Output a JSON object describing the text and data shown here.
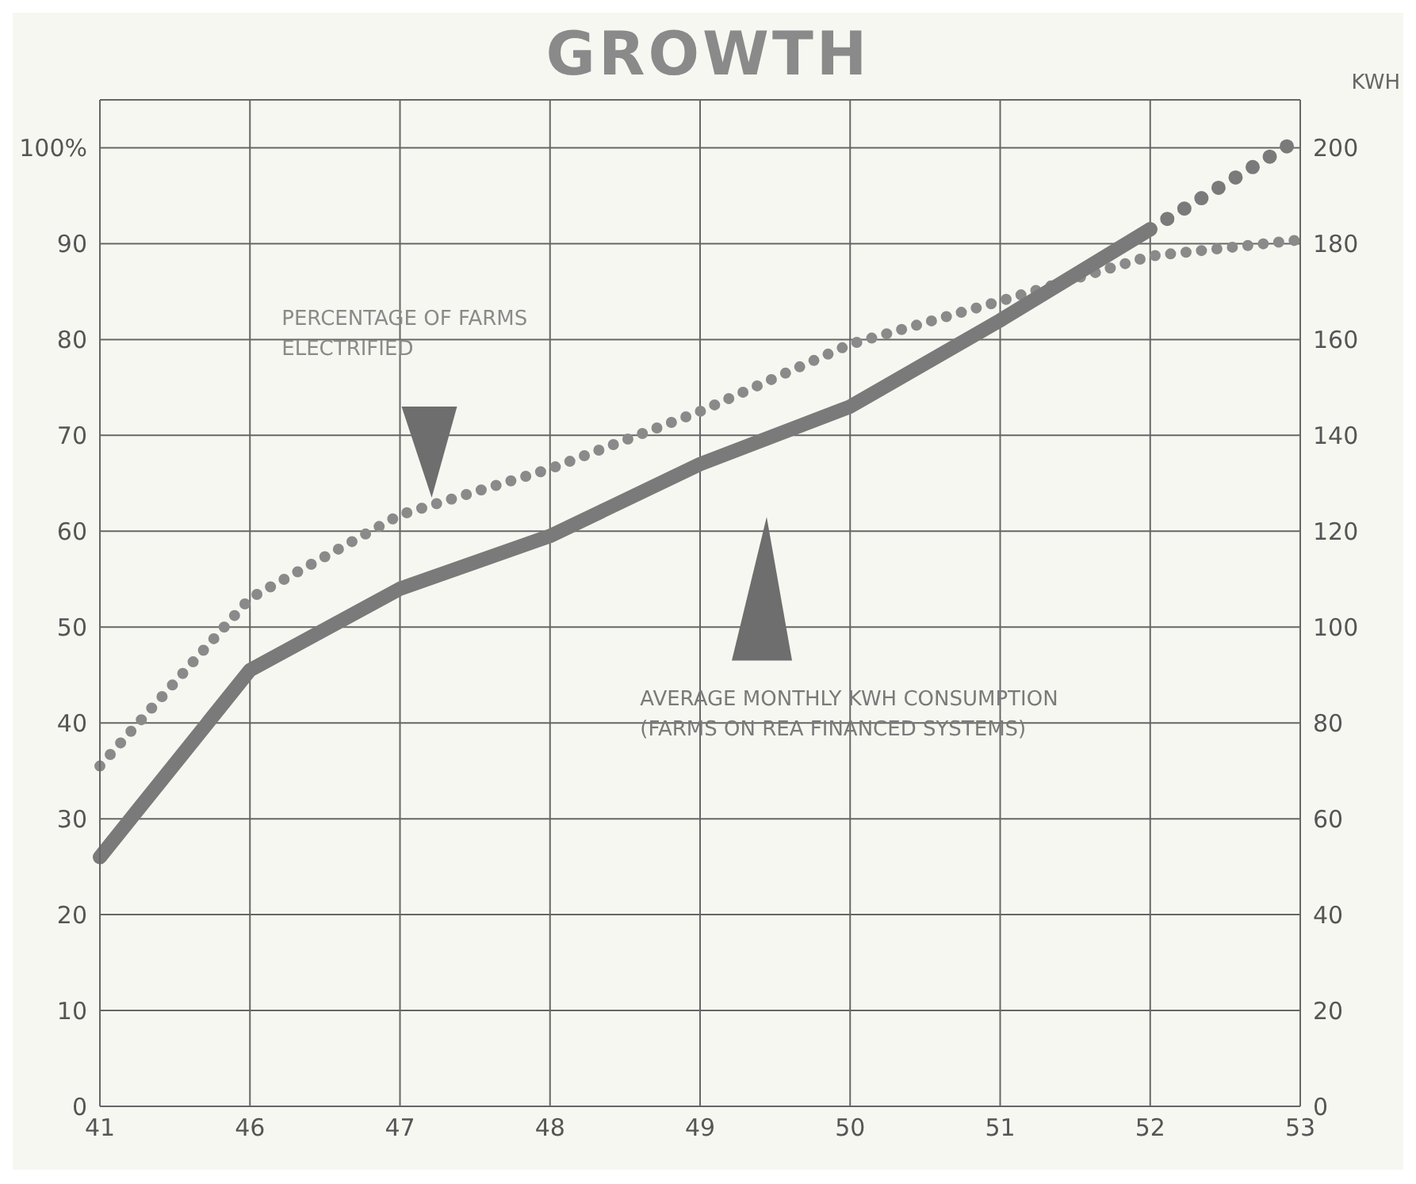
{
  "chart_data": {
    "type": "line",
    "title": "GROWTH",
    "y2label": "KWH",
    "categories": [
      "41",
      "46",
      "47",
      "48",
      "49",
      "50",
      "51",
      "52",
      "53"
    ],
    "series": [
      {
        "name": "PERCENTAGE OF FARMS ELECTRIFIED",
        "color": "#8a8a8a",
        "line_style": "dotted",
        "values": [
          35.5,
          53,
          61.7,
          66.5,
          72.5,
          79.5,
          84,
          88.7,
          90.4
        ]
      },
      {
        "name": "AVERAGE MONTHLY KWH CONSUMPTION (FARMS ON REA FINANCED SYSTEMS)",
        "color": "#7a7a7a",
        "axis": "y2",
        "line_style": "solid",
        "values": [
          52,
          91,
          108,
          119,
          134,
          146,
          164,
          183,
          null
        ]
      },
      {
        "color": "#7a7a7a",
        "axis": "y2",
        "line_style": "dotted",
        "values": [
          null,
          null,
          null,
          null,
          null,
          null,
          null,
          183,
          202
        ]
      }
    ],
    "ylim": [
      0,
      105
    ],
    "yticks": [
      0,
      10,
      20,
      30,
      40,
      50,
      60,
      70,
      80,
      90,
      {
        "value": 100,
        "label": "100%"
      }
    ],
    "y2lim": [
      0,
      210
    ],
    "y2ticks": [
      0,
      20,
      40,
      60,
      80,
      100,
      120,
      140,
      160,
      180,
      200
    ],
    "grid": true,
    "marker": "none"
  }
}
